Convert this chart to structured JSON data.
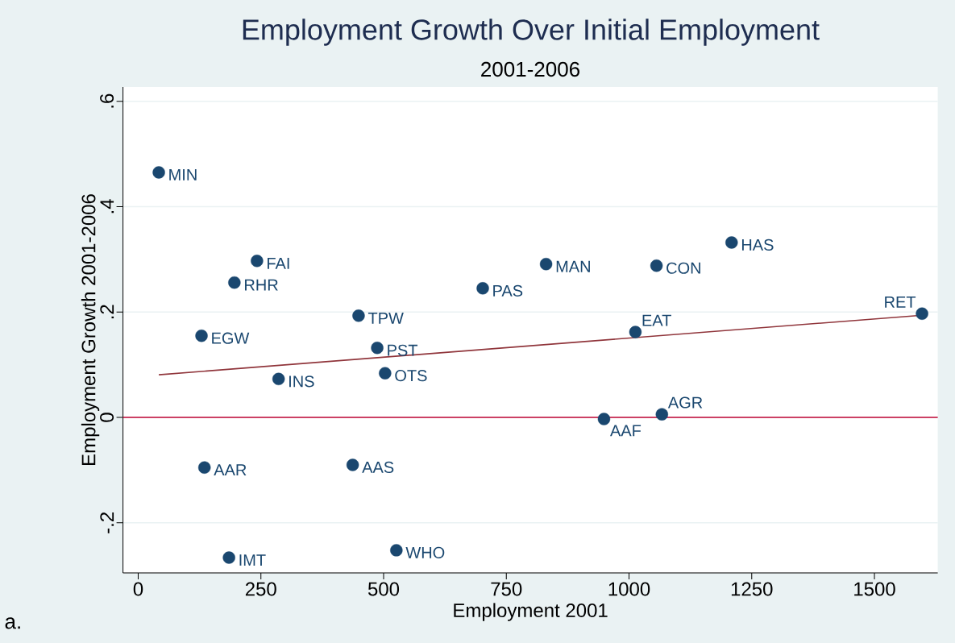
{
  "chart_data": {
    "type": "scatter",
    "title": "Employment Growth Over Initial Employment",
    "subtitle": "2001-2006",
    "xlabel": "Employment 2001",
    "ylabel": "Employment Growth 2001-2006",
    "xlim": [
      -31,
      1629
    ],
    "ylim": [
      -0.295,
      0.627
    ],
    "xticks": [
      0,
      250,
      500,
      750,
      1000,
      1250,
      1500
    ],
    "yticks": [
      {
        "value": -0.2,
        "label": "-.2"
      },
      0,
      {
        "value": 0.2,
        "label": ".2"
      },
      {
        "value": 0.4,
        "label": ".4"
      },
      {
        "value": 0.6,
        "label": ".6"
      }
    ],
    "grid": "y",
    "marker": "circle",
    "series": [
      {
        "type": "scatter",
        "color": "#1a476f",
        "x": [
          42,
          242,
          196,
          129,
          286,
          449,
          487,
          503,
          702,
          831,
          1056,
          1209,
          1597,
          1013,
          1067,
          949,
          135,
          437,
          185,
          526
        ],
        "values": [
          0.465,
          0.297,
          0.256,
          0.155,
          0.073,
          0.193,
          0.132,
          0.084,
          0.245,
          0.291,
          0.288,
          0.332,
          0.197,
          0.162,
          0.006,
          -0.003,
          -0.095,
          -0.09,
          -0.266,
          -0.252
        ]
      },
      {
        "type": "line",
        "marker": "none",
        "color": "#90353b",
        "x": [
          42,
          1597
        ],
        "values": [
          0.081,
          0.194
        ]
      }
    ],
    "ref_lines": [
      {
        "axis": "y",
        "value": 0,
        "color": "#c10534"
      }
    ],
    "annotations": [
      {
        "text": "MIN",
        "x": 42,
        "y": 0.465
      },
      {
        "text": "FAI",
        "x": 242,
        "y": 0.297
      },
      {
        "text": "RHR",
        "x": 196,
        "y": 0.256
      },
      {
        "text": "EGW",
        "x": 129,
        "y": 0.155
      },
      {
        "text": "INS",
        "x": 286,
        "y": 0.073
      },
      {
        "text": "TPW",
        "x": 449,
        "y": 0.193
      },
      {
        "text": "PST",
        "x": 487,
        "y": 0.132
      },
      {
        "text": "OTS",
        "x": 503,
        "y": 0.084
      },
      {
        "text": "PAS",
        "x": 702,
        "y": 0.245
      },
      {
        "text": "MAN",
        "x": 831,
        "y": 0.291
      },
      {
        "text": "CON",
        "x": 1056,
        "y": 0.288
      },
      {
        "text": "HAS",
        "x": 1209,
        "y": 0.332
      },
      {
        "text": "RET",
        "x": 1597,
        "y": 0.197
      },
      {
        "text": "EAT",
        "x": 1013,
        "y": 0.162
      },
      {
        "text": "AGR",
        "x": 1067,
        "y": 0.006
      },
      {
        "text": "AAF",
        "x": 949,
        "y": -0.003
      },
      {
        "text": "AAR",
        "x": 135,
        "y": -0.095
      },
      {
        "text": "AAS",
        "x": 437,
        "y": -0.09
      },
      {
        "text": "IMT",
        "x": 185,
        "y": -0.266
      },
      {
        "text": "WHO",
        "x": 526,
        "y": -0.252
      },
      "a."
    ]
  }
}
